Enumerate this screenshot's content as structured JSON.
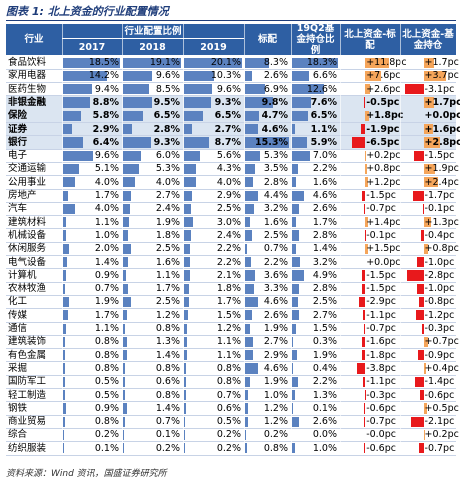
{
  "title": "图表 1: 北上资金的行业配置情况",
  "table": {
    "group_header": "行业配置比例",
    "columns": [
      "行业",
      "2017",
      "2018",
      "2019",
      "标配",
      "19Q2基金持仓比例",
      "北上资金-标配",
      "北上资金-基金持仓"
    ],
    "rows": [
      {
        "name": "食品饮料",
        "values": [
          18.5,
          19.1,
          20.1,
          8.3,
          18.3,
          11.8,
          1.7
        ],
        "value_labels": [
          "18.5%",
          "19.1%",
          "20.1%",
          "8.3%",
          "18.3%",
          "+11.8pc",
          "+1.7pc"
        ]
      },
      {
        "name": "家用电器",
        "values": [
          14.2,
          9.6,
          10.3,
          2.6,
          6.6,
          7.6,
          3.7
        ],
        "value_labels": [
          "14.2%",
          "9.6%",
          "10.3%",
          "2.6%",
          "6.6%",
          "+7.6pc",
          "+3.7pc"
        ]
      },
      {
        "name": "医药生物",
        "values": [
          9.4,
          8.5,
          9.6,
          6.9,
          12.6,
          2.6,
          -3.1
        ],
        "value_labels": [
          "9.4%",
          "8.5%",
          "9.6%",
          "6.9%",
          "12.6%",
          "+2.6pc",
          "-3.1pc"
        ]
      },
      {
        "name": "非银金融",
        "bold": true,
        "values": [
          8.8,
          9.5,
          9.3,
          9.8,
          7.6,
          -0.5,
          1.7
        ],
        "value_labels": [
          "8.8%",
          "9.5%",
          "9.3%",
          "9.8%",
          "7.6%",
          "-0.5pc",
          "+1.7pc"
        ]
      },
      {
        "name": "保险",
        "bold": true,
        "values": [
          5.8,
          6.5,
          6.5,
          4.7,
          6.5,
          1.8,
          0.0
        ],
        "value_labels": [
          "5.8%",
          "6.5%",
          "6.5%",
          "4.7%",
          "6.5%",
          "+1.8pc",
          "+0.0pc"
        ]
      },
      {
        "name": "证券",
        "bold": true,
        "values": [
          2.9,
          2.8,
          2.7,
          4.6,
          1.1,
          -1.9,
          1.6
        ],
        "value_labels": [
          "2.9%",
          "2.8%",
          "2.7%",
          "4.6%",
          "1.1%",
          "-1.9pc",
          "+1.6pc"
        ]
      },
      {
        "name": "银行",
        "bold": true,
        "values": [
          6.4,
          9.3,
          8.7,
          15.3,
          5.9,
          -6.5,
          2.8
        ],
        "value_labels": [
          "6.4%",
          "9.3%",
          "8.7%",
          "15.3%",
          "5.9%",
          "-6.5pc",
          "+2.8pc"
        ]
      },
      {
        "name": "电子",
        "values": [
          9.6,
          6.0,
          5.6,
          5.3,
          7.0,
          0.2,
          -1.5
        ],
        "value_labels": [
          "9.6%",
          "6.0%",
          "5.6%",
          "5.3%",
          "7.0%",
          "+0.2pc",
          "-1.5pc"
        ]
      },
      {
        "name": "交通运输",
        "values": [
          5.1,
          5.3,
          4.3,
          3.5,
          2.2,
          0.8,
          1.9
        ],
        "value_labels": [
          "5.1%",
          "5.3%",
          "4.3%",
          "3.5%",
          "2.2%",
          "+0.8pc",
          "+1.9pc"
        ]
      },
      {
        "name": "公用事业",
        "values": [
          4.0,
          4.0,
          4.0,
          2.8,
          1.6,
          1.2,
          2.4
        ],
        "value_labels": [
          "4.0%",
          "4.0%",
          "4.0%",
          "2.8%",
          "1.6%",
          "+1.2pc",
          "+2.4pc"
        ]
      },
      {
        "name": "房地产",
        "values": [
          1.7,
          2.7,
          2.9,
          4.4,
          4.6,
          -1.5,
          -1.7
        ],
        "value_labels": [
          "1.7%",
          "2.7%",
          "2.9%",
          "4.4%",
          "4.6%",
          "-1.5pc",
          "-1.7pc"
        ]
      },
      {
        "name": "汽车",
        "values": [
          4.0,
          2.4,
          2.5,
          3.2,
          2.6,
          -0.7,
          -0.1
        ],
        "value_labels": [
          "4.0%",
          "2.4%",
          "2.5%",
          "3.2%",
          "2.6%",
          "-0.7pc",
          "-0.1pc"
        ]
      },
      {
        "name": "建筑材料",
        "values": [
          1.1,
          1.9,
          3.0,
          1.6,
          1.7,
          1.4,
          1.3
        ],
        "value_labels": [
          "1.1%",
          "1.9%",
          "3.0%",
          "1.6%",
          "1.7%",
          "+1.4pc",
          "+1.3pc"
        ]
      },
      {
        "name": "机械设备",
        "values": [
          1.0,
          1.8,
          2.4,
          2.5,
          2.8,
          -0.1,
          -0.4
        ],
        "value_labels": [
          "1.0%",
          "1.8%",
          "2.4%",
          "2.5%",
          "2.8%",
          "-0.1pc",
          "-0.4pc"
        ]
      },
      {
        "name": "休闲服务",
        "values": [
          2.0,
          2.5,
          2.2,
          0.7,
          1.4,
          1.5,
          0.8
        ],
        "value_labels": [
          "2.0%",
          "2.5%",
          "2.2%",
          "0.7%",
          "1.4%",
          "+1.5pc",
          "+0.8pc"
        ]
      },
      {
        "name": "电气设备",
        "values": [
          1.4,
          1.6,
          2.2,
          2.2,
          3.2,
          0.0,
          -1.0
        ],
        "value_labels": [
          "1.4%",
          "1.6%",
          "2.2%",
          "2.2%",
          "3.2%",
          "+0.0pc",
          "-1.0pc"
        ]
      },
      {
        "name": "计算机",
        "values": [
          0.9,
          1.1,
          2.1,
          3.6,
          4.9,
          -1.5,
          -2.8
        ],
        "value_labels": [
          "0.9%",
          "1.1%",
          "2.1%",
          "3.6%",
          "4.9%",
          "-1.5pc",
          "-2.8pc"
        ]
      },
      {
        "name": "农林牧渔",
        "values": [
          0.7,
          1.7,
          1.8,
          3.3,
          2.8,
          -1.5,
          -1.0
        ],
        "value_labels": [
          "0.7%",
          "1.7%",
          "1.8%",
          "3.3%",
          "2.8%",
          "-1.5pc",
          "-1.0pc"
        ]
      },
      {
        "name": "化工",
        "values": [
          1.9,
          2.5,
          1.7,
          4.6,
          2.5,
          -2.9,
          -0.8
        ],
        "value_labels": [
          "1.9%",
          "2.5%",
          "1.7%",
          "4.6%",
          "2.5%",
          "-2.9pc",
          "-0.8pc"
        ]
      },
      {
        "name": "传媒",
        "values": [
          1.7,
          1.2,
          1.5,
          2.6,
          2.7,
          -1.1,
          -1.2
        ],
        "value_labels": [
          "1.7%",
          "1.2%",
          "1.5%",
          "2.6%",
          "2.7%",
          "-1.1pc",
          "-1.2pc"
        ]
      },
      {
        "name": "通信",
        "values": [
          1.1,
          0.8,
          1.2,
          1.9,
          1.5,
          -0.7,
          -0.3
        ],
        "value_labels": [
          "1.1%",
          "0.8%",
          "1.2%",
          "1.9%",
          "1.5%",
          "-0.7pc",
          "-0.3pc"
        ]
      },
      {
        "name": "建筑装饰",
        "values": [
          0.8,
          1.3,
          1.1,
          2.7,
          0.3,
          -1.6,
          0.7
        ],
        "value_labels": [
          "0.8%",
          "1.3%",
          "1.1%",
          "2.7%",
          "0.3%",
          "-1.6pc",
          "+0.7pc"
        ]
      },
      {
        "name": "有色金属",
        "values": [
          0.8,
          1.4,
          1.1,
          2.9,
          1.9,
          -1.8,
          -0.9
        ],
        "value_labels": [
          "0.8%",
          "1.4%",
          "1.1%",
          "2.9%",
          "1.9%",
          "-1.8pc",
          "-0.9pc"
        ]
      },
      {
        "name": "采掘",
        "values": [
          0.8,
          0.8,
          0.8,
          4.6,
          0.4,
          -3.8,
          0.4
        ],
        "value_labels": [
          "0.8%",
          "0.8%",
          "0.8%",
          "4.6%",
          "0.4%",
          "-3.8pc",
          "+0.4pc"
        ]
      },
      {
        "name": "国防军工",
        "values": [
          0.5,
          0.6,
          0.8,
          1.9,
          2.2,
          -1.1,
          -1.4
        ],
        "value_labels": [
          "0.5%",
          "0.6%",
          "0.8%",
          "1.9%",
          "2.2%",
          "-1.1pc",
          "-1.4pc"
        ]
      },
      {
        "name": "轻工制造",
        "values": [
          0.5,
          0.8,
          0.7,
          1.0,
          1.3,
          -0.3,
          -0.6
        ],
        "value_labels": [
          "0.5%",
          "0.8%",
          "0.7%",
          "1.0%",
          "1.3%",
          "-0.3pc",
          "-0.6pc"
        ]
      },
      {
        "name": "钢铁",
        "values": [
          0.9,
          1.4,
          0.6,
          1.2,
          0.1,
          -0.6,
          0.5
        ],
        "value_labels": [
          "0.9%",
          "1.4%",
          "0.6%",
          "1.2%",
          "0.1%",
          "-0.6pc",
          "+0.5pc"
        ]
      },
      {
        "name": "商业贸易",
        "values": [
          0.8,
          0.7,
          0.5,
          1.2,
          2.6,
          -0.7,
          -2.1
        ],
        "value_labels": [
          "0.8%",
          "0.7%",
          "0.5%",
          "1.2%",
          "2.6%",
          "-0.7pc",
          "-2.1pc"
        ]
      },
      {
        "name": "综合",
        "values": [
          0.2,
          0.1,
          0.2,
          0.2,
          0.0,
          -0.0,
          0.2
        ],
        "value_labels": [
          "0.2%",
          "0.1%",
          "0.2%",
          "0.2%",
          "0.0%",
          "-0.0pc",
          "+0.2pc"
        ]
      },
      {
        "name": "纺织服装",
        "values": [
          0.1,
          0.2,
          0.2,
          0.8,
          1.0,
          -0.6,
          -0.7
        ],
        "value_labels": [
          "0.1%",
          "0.2%",
          "0.2%",
          "0.8%",
          "1.0%",
          "-0.6pc",
          "-0.7pc"
        ]
      }
    ]
  },
  "source": "资料来源：Wind 资讯，国盛证券研究所"
}
